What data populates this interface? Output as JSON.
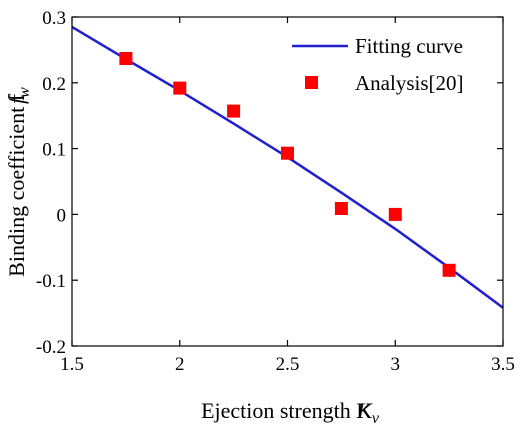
{
  "chart_data": {
    "type": "line",
    "xlabel": "Ejection strength K",
    "xlabel_symbol": "K",
    "xlabel_sub": "v",
    "ylabel": "Binding coefficient f",
    "ylabel_symbol": "f",
    "ylabel_sub": "w",
    "xlim": [
      1.5,
      3.5
    ],
    "ylim": [
      -0.2,
      0.3
    ],
    "xticks": [
      1.5,
      2,
      2.5,
      3,
      3.5
    ],
    "xtick_labels": [
      "1.5",
      "2",
      "2.5",
      "3",
      "3.5"
    ],
    "yticks": [
      -0.2,
      -0.1,
      0,
      0.1,
      0.2,
      0.3
    ],
    "ytick_labels": [
      "-0.2",
      "-0.1",
      "0",
      "0.1",
      "0.2",
      "0.3"
    ],
    "grid": false,
    "legend_position": "top-right",
    "series": [
      {
        "name": "Fitting curve",
        "kind": "line",
        "color": "#1f1fd0",
        "x": [
          1.5,
          1.75,
          2.0,
          2.25,
          2.5,
          2.75,
          3.0,
          3.25,
          3.5
        ],
        "y": [
          0.285,
          0.236,
          0.188,
          0.138,
          0.087,
          0.033,
          -0.022,
          -0.081,
          -0.142
        ]
      },
      {
        "name": "Analysis[20]",
        "kind": "scatter",
        "color": "#ff0000",
        "x": [
          1.75,
          2.0,
          2.25,
          2.5,
          2.75,
          3.0,
          3.25
        ],
        "y": [
          0.237,
          0.192,
          0.157,
          0.093,
          0.009,
          0.0,
          -0.085
        ]
      }
    ]
  }
}
